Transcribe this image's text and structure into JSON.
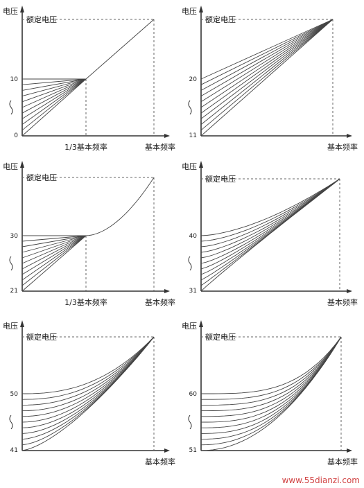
{
  "panels": [
    {
      "y_axis_label": "电压",
      "rated_voltage_label": "额定电压",
      "top_tick": "10",
      "bottom_tick": "0",
      "x_mid_label": "1/3基本频率",
      "x_end_label": "基本频率"
    },
    {
      "y_axis_label": "电压",
      "rated_voltage_label": "额定电压",
      "top_tick": "20",
      "bottom_tick": "11",
      "x_mid_label": "",
      "x_end_label": "基本频率"
    },
    {
      "y_axis_label": "电压",
      "rated_voltage_label": "额定电压",
      "top_tick": "30",
      "bottom_tick": "21",
      "x_mid_label": "1/3基本频率",
      "x_end_label": "基本频率"
    },
    {
      "y_axis_label": "电压",
      "rated_voltage_label": "额定电压",
      "top_tick": "40",
      "bottom_tick": "31",
      "x_mid_label": "",
      "x_end_label": "基本频率"
    },
    {
      "y_axis_label": "电压",
      "rated_voltage_label": "额定电压",
      "top_tick": "50",
      "bottom_tick": "41",
      "x_mid_label": "",
      "x_end_label": "基本频率"
    },
    {
      "y_axis_label": "电压",
      "rated_voltage_label": "额定电压",
      "top_tick": "60",
      "bottom_tick": "51",
      "x_mid_label": "",
      "x_end_label": "基本频率"
    }
  ],
  "watermark": "www.55dianzi.com"
}
